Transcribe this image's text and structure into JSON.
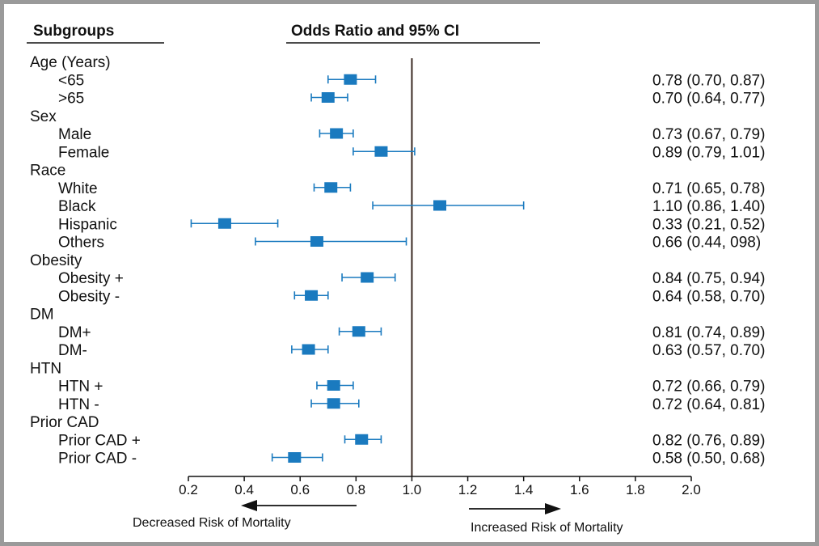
{
  "headers": {
    "subgroups": "Subgroups",
    "odds_ratio": "Odds Ratio and 95% CI"
  },
  "colors": {
    "marker": "#1a7abf",
    "reference_line": "#3a2a22",
    "axis": "#111111",
    "frame": "#9a9a9a"
  },
  "arrows": {
    "left": "Decreased Risk of Mortality",
    "right": "Increased Risk of Mortality"
  },
  "chart_data": {
    "type": "forest",
    "xlim": [
      0.2,
      2.0
    ],
    "xticks": [
      "0.2",
      "0.4",
      "0.6",
      "0.8",
      "1.0",
      "1.2",
      "1.4",
      "1.6",
      "1.8",
      "2.0"
    ],
    "reference_value": 1.0,
    "groups": [
      {
        "name": "Age (Years)",
        "rows": [
          {
            "label": "<65",
            "or": 0.78,
            "lo": 0.7,
            "hi": 0.87,
            "text": "0.78 (0.70, 0.87)"
          },
          {
            "label": ">65",
            "or": 0.7,
            "lo": 0.64,
            "hi": 0.77,
            "text": "0.70 (0.64, 0.77)"
          }
        ]
      },
      {
        "name": "Sex",
        "rows": [
          {
            "label": "Male",
            "or": 0.73,
            "lo": 0.67,
            "hi": 0.79,
            "text": "0.73 (0.67, 0.79)"
          },
          {
            "label": "Female",
            "or": 0.89,
            "lo": 0.79,
            "hi": 1.01,
            "text": "0.89 (0.79, 1.01)"
          }
        ]
      },
      {
        "name": "Race",
        "rows": [
          {
            "label": "White",
            "or": 0.71,
            "lo": 0.65,
            "hi": 0.78,
            "text": "0.71 (0.65, 0.78)"
          },
          {
            "label": "Black",
            "or": 1.1,
            "lo": 0.86,
            "hi": 1.4,
            "text": "1.10 (0.86, 1.40)"
          },
          {
            "label": "Hispanic",
            "or": 0.33,
            "lo": 0.21,
            "hi": 0.52,
            "text": "0.33 (0.21, 0.52)"
          },
          {
            "label": "Others",
            "or": 0.66,
            "lo": 0.44,
            "hi": 0.98,
            "text": "0.66 (0.44, 098)"
          }
        ]
      },
      {
        "name": "Obesity",
        "rows": [
          {
            "label": "Obesity +",
            "or": 0.84,
            "lo": 0.75,
            "hi": 0.94,
            "text": "0.84 (0.75, 0.94)"
          },
          {
            "label": "Obesity -",
            "or": 0.64,
            "lo": 0.58,
            "hi": 0.7,
            "text": "0.64 (0.58, 0.70)"
          }
        ]
      },
      {
        "name": "DM",
        "rows": [
          {
            "label": "DM+",
            "or": 0.81,
            "lo": 0.74,
            "hi": 0.89,
            "text": "0.81 (0.74, 0.89)"
          },
          {
            "label": "DM-",
            "or": 0.63,
            "lo": 0.57,
            "hi": 0.7,
            "text": "0.63 (0.57, 0.70)"
          }
        ]
      },
      {
        "name": "HTN",
        "rows": [
          {
            "label": "HTN +",
            "or": 0.72,
            "lo": 0.66,
            "hi": 0.79,
            "text": "0.72 (0.66, 0.79)"
          },
          {
            "label": "HTN -",
            "or": 0.72,
            "lo": 0.64,
            "hi": 0.81,
            "text": "0.72 (0.64, 0.81)"
          }
        ]
      },
      {
        "name": "Prior CAD",
        "rows": [
          {
            "label": "Prior CAD +",
            "or": 0.82,
            "lo": 0.76,
            "hi": 0.89,
            "text": "0.82 (0.76, 0.89)"
          },
          {
            "label": "Prior CAD -",
            "or": 0.58,
            "lo": 0.5,
            "hi": 0.68,
            "text": "0.58 (0.50, 0.68)"
          }
        ]
      }
    ]
  }
}
